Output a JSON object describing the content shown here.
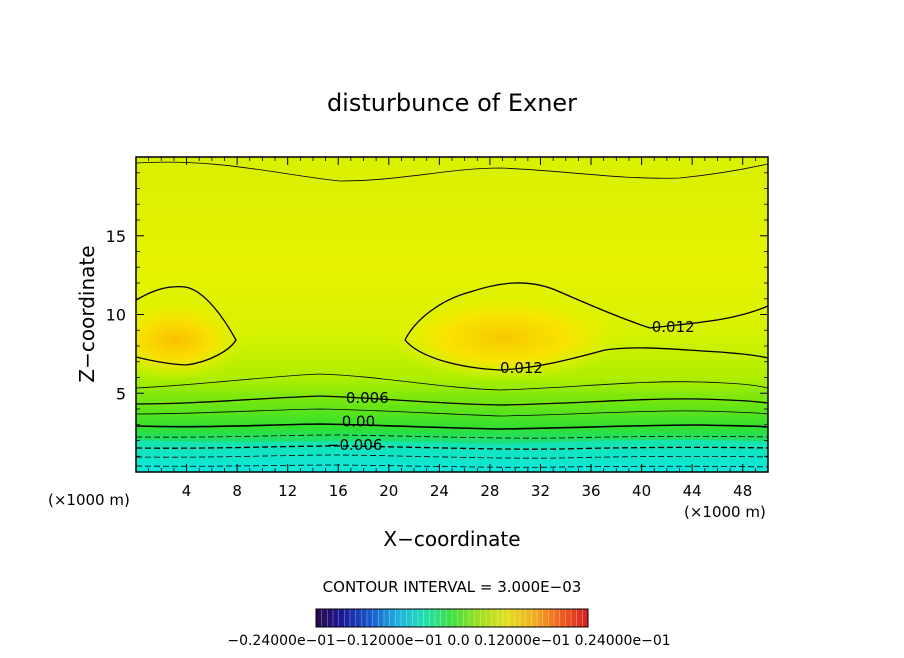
{
  "chart_data": {
    "type": "contour",
    "title": "disturbunce of Exner",
    "xlabel": "X−coordinate",
    "ylabel": "Z−coordinate",
    "x_unit_left": "(×1000 m)",
    "x_unit_right": "(×1000 m)",
    "xlim": [
      0,
      50
    ],
    "ylim": [
      0,
      20
    ],
    "x_ticks": [
      4,
      8,
      12,
      16,
      20,
      24,
      28,
      32,
      36,
      40,
      44,
      48
    ],
    "x_tick_labels": [
      "4",
      "8",
      "12",
      "16",
      "20",
      "24",
      "28",
      "32",
      "36",
      "40",
      "44",
      "48"
    ],
    "y_ticks": [
      5,
      10,
      15
    ],
    "y_tick_labels": [
      "5",
      "10",
      "15"
    ],
    "contour_interval_text": "CONTOUR INTERVAL = 3.000E−03",
    "contour_labels": [
      {
        "text": "0.012",
        "x": 42.5,
        "z": 9.2
      },
      {
        "text": "0.012",
        "x": 30.5,
        "z": 6.6
      },
      {
        "text": "0.006",
        "x": 18.3,
        "z": 4.7
      },
      {
        "text": "0.00",
        "x": 17.6,
        "z": 3.2
      },
      {
        "text": "−0.006",
        "x": 17.3,
        "z": 1.7
      }
    ],
    "colorbar": {
      "range": [
        -0.024,
        0.024
      ],
      "colormap": [
        "#2a0a4a",
        "#1a1a9a",
        "#1a5ad0",
        "#20b0e0",
        "#20e0b0",
        "#40e040",
        "#a0e020",
        "#e0e020",
        "#f0b020",
        "#f06020",
        "#d02020"
      ],
      "tick_labels_text": "−0.24000e−01−0.12000e−01 0.0 0.12000e−01 0.24000e−01"
    }
  }
}
